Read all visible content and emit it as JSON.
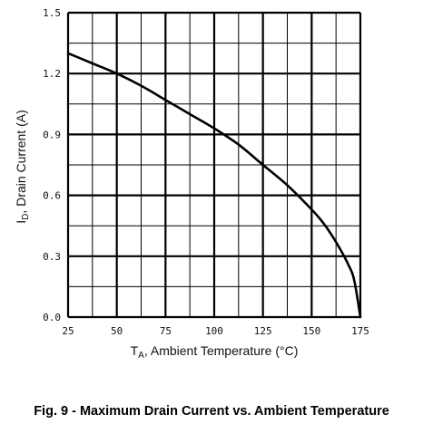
{
  "caption": "Fig. 9 - Maximum Drain Current vs. Ambient Temperature",
  "chart_data": {
    "type": "line",
    "title": "",
    "xlabel": {
      "main": "T",
      "sub": "A",
      "rest": ", Ambient Temperature (°C)"
    },
    "ylabel": {
      "main": "I",
      "sub": "D",
      "rest": ", Drain Current (A)"
    },
    "xlim": [
      25,
      175
    ],
    "ylim": [
      0,
      1.5
    ],
    "x_ticks": [
      25,
      50,
      75,
      100,
      125,
      150,
      175
    ],
    "x_tick_labels": [
      "25",
      "50",
      "75",
      "100",
      "125",
      "150",
      "175"
    ],
    "y_ticks": [
      0,
      0.3,
      0.6,
      0.9,
      1.2,
      1.5
    ],
    "y_tick_labels": [
      "0.0",
      "0.3",
      "0.6",
      "0.9",
      "1.2",
      "1.5"
    ],
    "grid": true,
    "series": [
      {
        "x": [
          25,
          37.5,
          50,
          62.5,
          75,
          87.5,
          100,
          112.5,
          125,
          137.5,
          150,
          156.25,
          162.5,
          168.75,
          171.875,
          175
        ],
        "y": [
          1.3,
          1.25,
          1.2,
          1.14,
          1.07,
          1.0,
          0.93,
          0.85,
          0.75,
          0.65,
          0.53,
          0.46,
          0.37,
          0.26,
          0.18,
          0.0
        ]
      }
    ]
  }
}
